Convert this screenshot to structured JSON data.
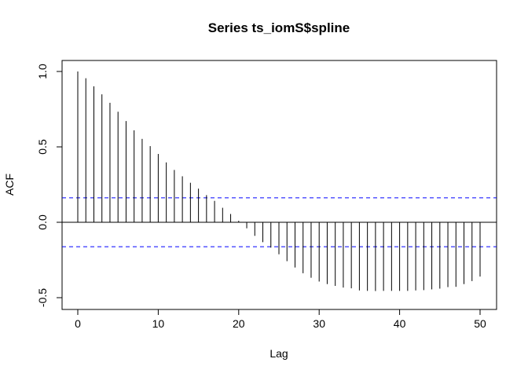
{
  "chart_data": {
    "type": "bar",
    "title": "Series  ts_iomS$spline",
    "xlabel": "Lag",
    "ylabel": "ACF",
    "xlim": [
      0,
      52
    ],
    "ylim": [
      -0.5,
      1.0
    ],
    "x_ticks": [
      "0",
      "10",
      "20",
      "30",
      "40",
      "50"
    ],
    "y_ticks": [
      "-0.5",
      "0.0",
      "0.5",
      "1.0"
    ],
    "confidence_bound": 0.162,
    "confidence_color": "#0000ff",
    "lags": [
      0,
      1,
      2,
      3,
      4,
      5,
      6,
      7,
      8,
      9,
      10,
      11,
      12,
      13,
      14,
      15,
      16,
      17,
      18,
      19,
      20,
      21,
      22,
      23,
      24,
      25,
      26,
      27,
      28,
      29,
      30,
      31,
      32,
      33,
      34,
      35,
      36,
      37,
      38,
      39,
      40,
      41,
      42,
      43,
      44,
      45,
      46,
      47,
      48,
      49,
      50
    ],
    "values": [
      1.0,
      0.955,
      0.902,
      0.848,
      0.792,
      0.733,
      0.671,
      0.61,
      0.553,
      0.505,
      0.453,
      0.397,
      0.347,
      0.305,
      0.262,
      0.223,
      0.18,
      0.142,
      0.096,
      0.055,
      0.01,
      -0.04,
      -0.09,
      -0.132,
      -0.168,
      -0.212,
      -0.258,
      -0.3,
      -0.338,
      -0.368,
      -0.393,
      -0.41,
      -0.422,
      -0.433,
      -0.438,
      -0.452,
      -0.455,
      -0.456,
      -0.455,
      -0.455,
      -0.455,
      -0.455,
      -0.452,
      -0.45,
      -0.445,
      -0.44,
      -0.43,
      -0.428,
      -0.41,
      -0.39,
      -0.36
    ]
  }
}
